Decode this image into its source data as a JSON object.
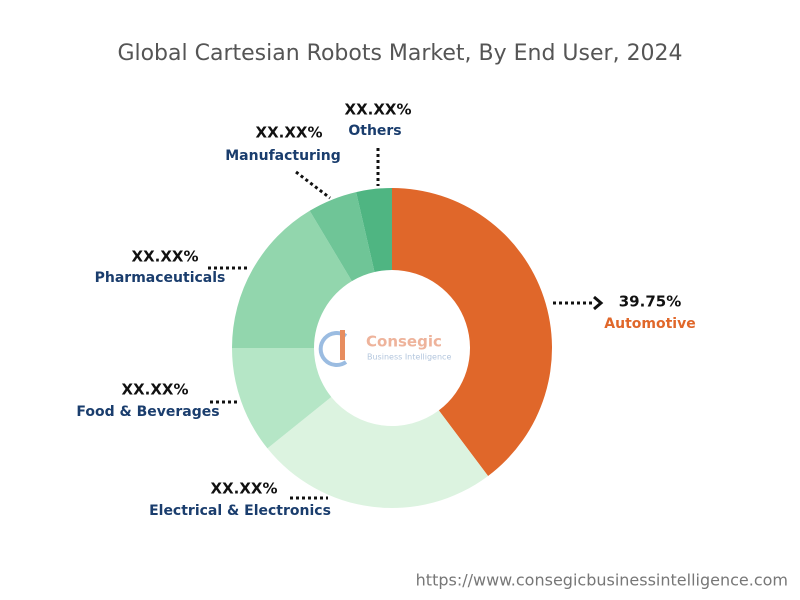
{
  "chart_data": {
    "type": "pie",
    "title": "Global Cartesian Robots Market, By End User, 2024",
    "categories": [
      "Automotive",
      "Electrical & Electronics",
      "Food & Beverages",
      "Pharmaceuticals",
      "Manufacturing",
      "Others"
    ],
    "values": [
      39.75,
      24.45,
      10.8,
      16.4,
      5,
      3.6
    ],
    "value_labels": [
      "39.75%",
      "XX.XX%",
      "XX.XX%",
      "XX.XX%",
      "XX.XX%",
      "XX.XX%"
    ],
    "colors": [
      "#e0672a",
      "#dcf3e0",
      "#b5e6c6",
      "#92d6ad",
      "#6fc597",
      "#4fb582"
    ]
  },
  "watermark": {
    "brand": "Consegic",
    "tagline": "Business Intelligence"
  },
  "source_url": "https://www.consegicbusinessintelligence.com"
}
